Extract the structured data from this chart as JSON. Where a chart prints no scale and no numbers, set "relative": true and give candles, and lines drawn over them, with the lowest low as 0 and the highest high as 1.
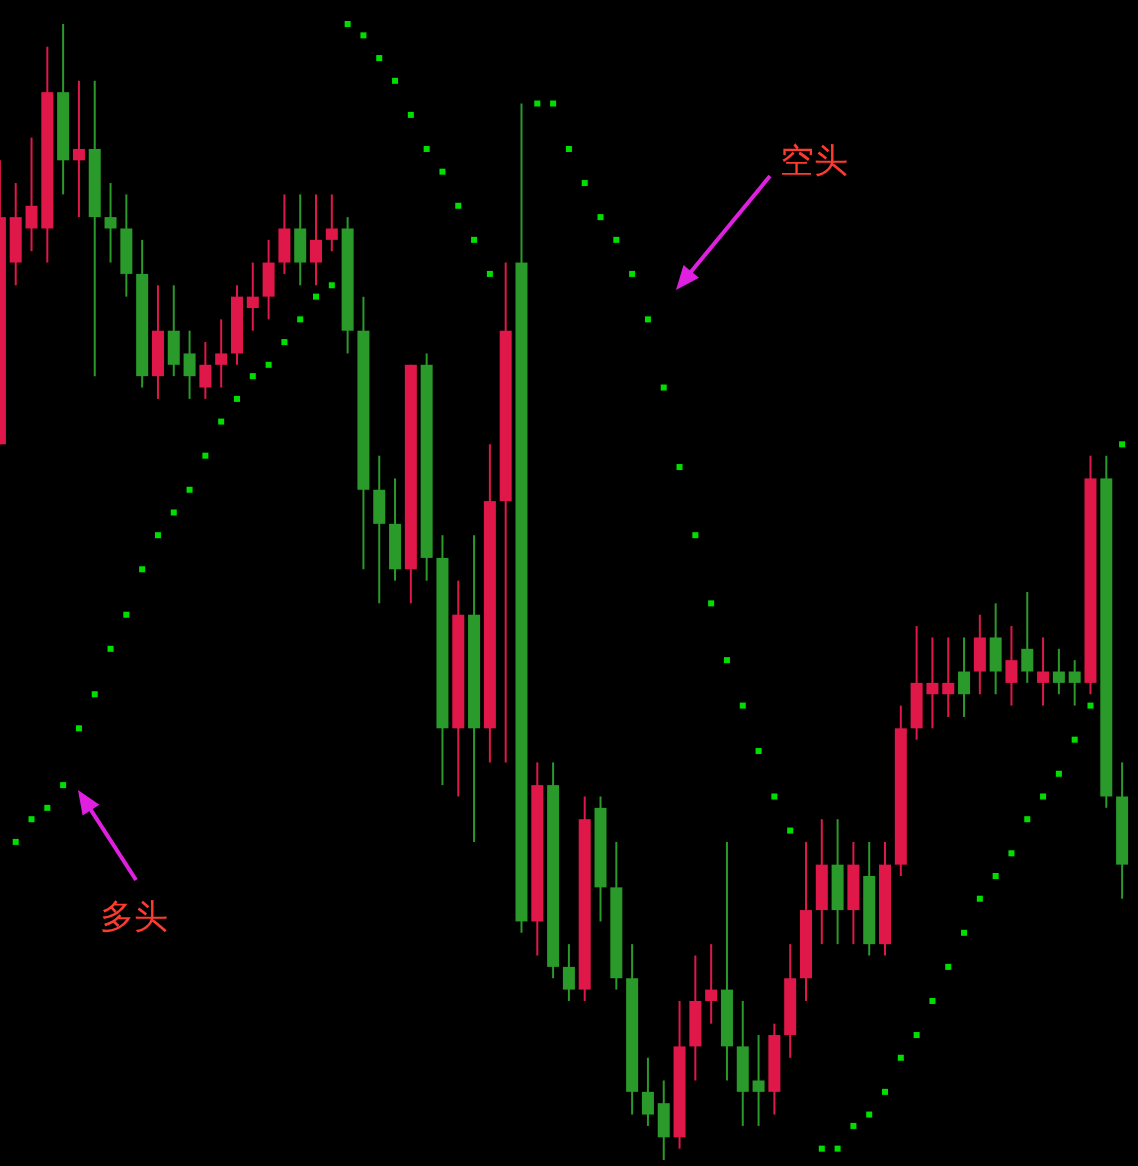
{
  "chart_data": {
    "type": "candlestick",
    "relative": true,
    "annotations": [
      "空头",
      "多头"
    ],
    "categories": [
      null,
      null,
      null,
      null,
      null,
      null,
      null,
      null,
      null,
      null,
      null,
      null,
      null,
      null,
      null,
      null,
      null,
      null,
      null,
      null,
      null,
      null,
      null,
      null,
      null,
      null,
      null,
      null,
      null,
      null,
      null,
      null,
      null,
      null,
      null,
      null,
      null,
      null,
      null,
      null,
      null,
      null,
      null,
      null,
      null,
      null,
      null,
      null,
      null,
      null,
      null,
      null,
      null,
      null,
      null,
      null,
      null,
      null,
      null,
      null,
      null,
      null,
      null,
      null,
      null,
      null,
      null,
      null,
      null,
      null,
      null,
      null
    ],
    "ohlc": [
      [
        0.63,
        0.88,
        0.63,
        0.83
      ],
      [
        0.79,
        0.86,
        0.77,
        0.83
      ],
      [
        0.82,
        0.9,
        0.8,
        0.84
      ],
      [
        0.82,
        0.98,
        0.79,
        0.94
      ],
      [
        0.94,
        1,
        0.85,
        0.88
      ],
      [
        0.88,
        0.95,
        0.83,
        0.89
      ],
      [
        0.89,
        0.95,
        0.69,
        0.83
      ],
      [
        0.83,
        0.86,
        0.79,
        0.82
      ],
      [
        0.82,
        0.85,
        0.76,
        0.78
      ],
      [
        0.78,
        0.81,
        0.68,
        0.69
      ],
      [
        0.69,
        0.77,
        0.67,
        0.73
      ],
      [
        0.73,
        0.77,
        0.69,
        0.7
      ],
      [
        0.71,
        0.73,
        0.67,
        0.69
      ],
      [
        0.68,
        0.72,
        0.67,
        0.7
      ],
      [
        0.7,
        0.74,
        0.68,
        0.71
      ],
      [
        0.71,
        0.77,
        0.7,
        0.76
      ],
      [
        0.75,
        0.79,
        0.73,
        0.76
      ],
      [
        0.76,
        0.81,
        0.74,
        0.79
      ],
      [
        0.79,
        0.85,
        0.78,
        0.82
      ],
      [
        0.82,
        0.85,
        0.77,
        0.79
      ],
      [
        0.79,
        0.85,
        0.77,
        0.81
      ],
      [
        0.81,
        0.85,
        0.8,
        0.82
      ],
      [
        0.82,
        0.83,
        0.71,
        0.73
      ],
      [
        0.73,
        0.76,
        0.52,
        0.59
      ],
      [
        0.59,
        0.62,
        0.49,
        0.56
      ],
      [
        0.56,
        0.6,
        0.51,
        0.52
      ],
      [
        0.52,
        0.7,
        0.49,
        0.7
      ],
      [
        0.7,
        0.71,
        0.51,
        0.53
      ],
      [
        0.53,
        0.55,
        0.33,
        0.38
      ],
      [
        0.38,
        0.51,
        0.32,
        0.48
      ],
      [
        0.48,
        0.55,
        0.28,
        0.38
      ],
      [
        0.38,
        0.63,
        0.35,
        0.58
      ],
      [
        0.58,
        0.79,
        0.35,
        0.73
      ],
      [
        0.79,
        0.93,
        0.2,
        0.21
      ],
      [
        0.21,
        0.35,
        0.18,
        0.33
      ],
      [
        0.33,
        0.35,
        0.16,
        0.17
      ],
      [
        0.17,
        0.19,
        0.14,
        0.15
      ],
      [
        0.15,
        0.32,
        0.14,
        0.3
      ],
      [
        0.31,
        0.32,
        0.21,
        0.24
      ],
      [
        0.24,
        0.28,
        0.15,
        0.16
      ],
      [
        0.16,
        0.19,
        0.04,
        0.06
      ],
      [
        0.06,
        0.09,
        0.03,
        0.04
      ],
      [
        0.05,
        0.07,
        0,
        0.02
      ],
      [
        0.02,
        0.14,
        0.01,
        0.1
      ],
      [
        0.1,
        0.18,
        0.07,
        0.14
      ],
      [
        0.14,
        0.19,
        0.12,
        0.15
      ],
      [
        0.15,
        0.28,
        0.07,
        0.1
      ],
      [
        0.1,
        0.14,
        0.03,
        0.06
      ],
      [
        0.07,
        0.11,
        0.03,
        0.06
      ],
      [
        0.06,
        0.12,
        0.04,
        0.11
      ],
      [
        0.11,
        0.19,
        0.09,
        0.16
      ],
      [
        0.16,
        0.28,
        0.14,
        0.22
      ],
      [
        0.22,
        0.3,
        0.19,
        0.26
      ],
      [
        0.26,
        0.3,
        0.19,
        0.22
      ],
      [
        0.22,
        0.28,
        0.19,
        0.26
      ],
      [
        0.25,
        0.28,
        0.18,
        0.19
      ],
      [
        0.19,
        0.28,
        0.18,
        0.26
      ],
      [
        0.26,
        0.4,
        0.25,
        0.38
      ],
      [
        0.38,
        0.47,
        0.37,
        0.42
      ],
      [
        0.41,
        0.46,
        0.38,
        0.42
      ],
      [
        0.41,
        0.46,
        0.39,
        0.42
      ],
      [
        0.43,
        0.46,
        0.39,
        0.41
      ],
      [
        0.43,
        0.48,
        0.41,
        0.46
      ],
      [
        0.46,
        0.49,
        0.41,
        0.43
      ],
      [
        0.42,
        0.47,
        0.4,
        0.44
      ],
      [
        0.45,
        0.5,
        0.42,
        0.43
      ],
      [
        0.42,
        0.46,
        0.4,
        0.43
      ],
      [
        0.43,
        0.45,
        0.41,
        0.42
      ],
      [
        0.43,
        0.44,
        0.4,
        0.42
      ],
      [
        0.42,
        0.62,
        0.41,
        0.6
      ],
      [
        0.6,
        0.62,
        0.31,
        0.32
      ],
      [
        0.32,
        0.35,
        0.23,
        0.26
      ]
    ],
    "series": [
      {
        "type": "scatter",
        "marker": "square",
        "color": "#00e000",
        "values": [
          null,
          0.28,
          0.3,
          0.31,
          0.33,
          0.38,
          0.41,
          0.45,
          0.48,
          0.52,
          0.55,
          0.57,
          0.59,
          0.62,
          0.65,
          0.67,
          0.69,
          0.7,
          0.72,
          0.74,
          0.76,
          0.77,
          1,
          0.99,
          0.97,
          0.95,
          0.92,
          0.89,
          0.87,
          0.84,
          0.81,
          0.78,
          null,
          null,
          0.93,
          0.93,
          0.89,
          0.86,
          0.83,
          0.81,
          0.78,
          0.74,
          0.68,
          0.61,
          0.55,
          0.49,
          0.44,
          0.4,
          0.36,
          0.32,
          0.29,
          null,
          0.01,
          0.01,
          0.03,
          0.04,
          0.06,
          0.09,
          0.11,
          0.14,
          0.17,
          0.2,
          0.23,
          0.25,
          0.27,
          0.3,
          0.32,
          0.34,
          0.37,
          0.4,
          null,
          0.63
        ]
      }
    ]
  }
}
